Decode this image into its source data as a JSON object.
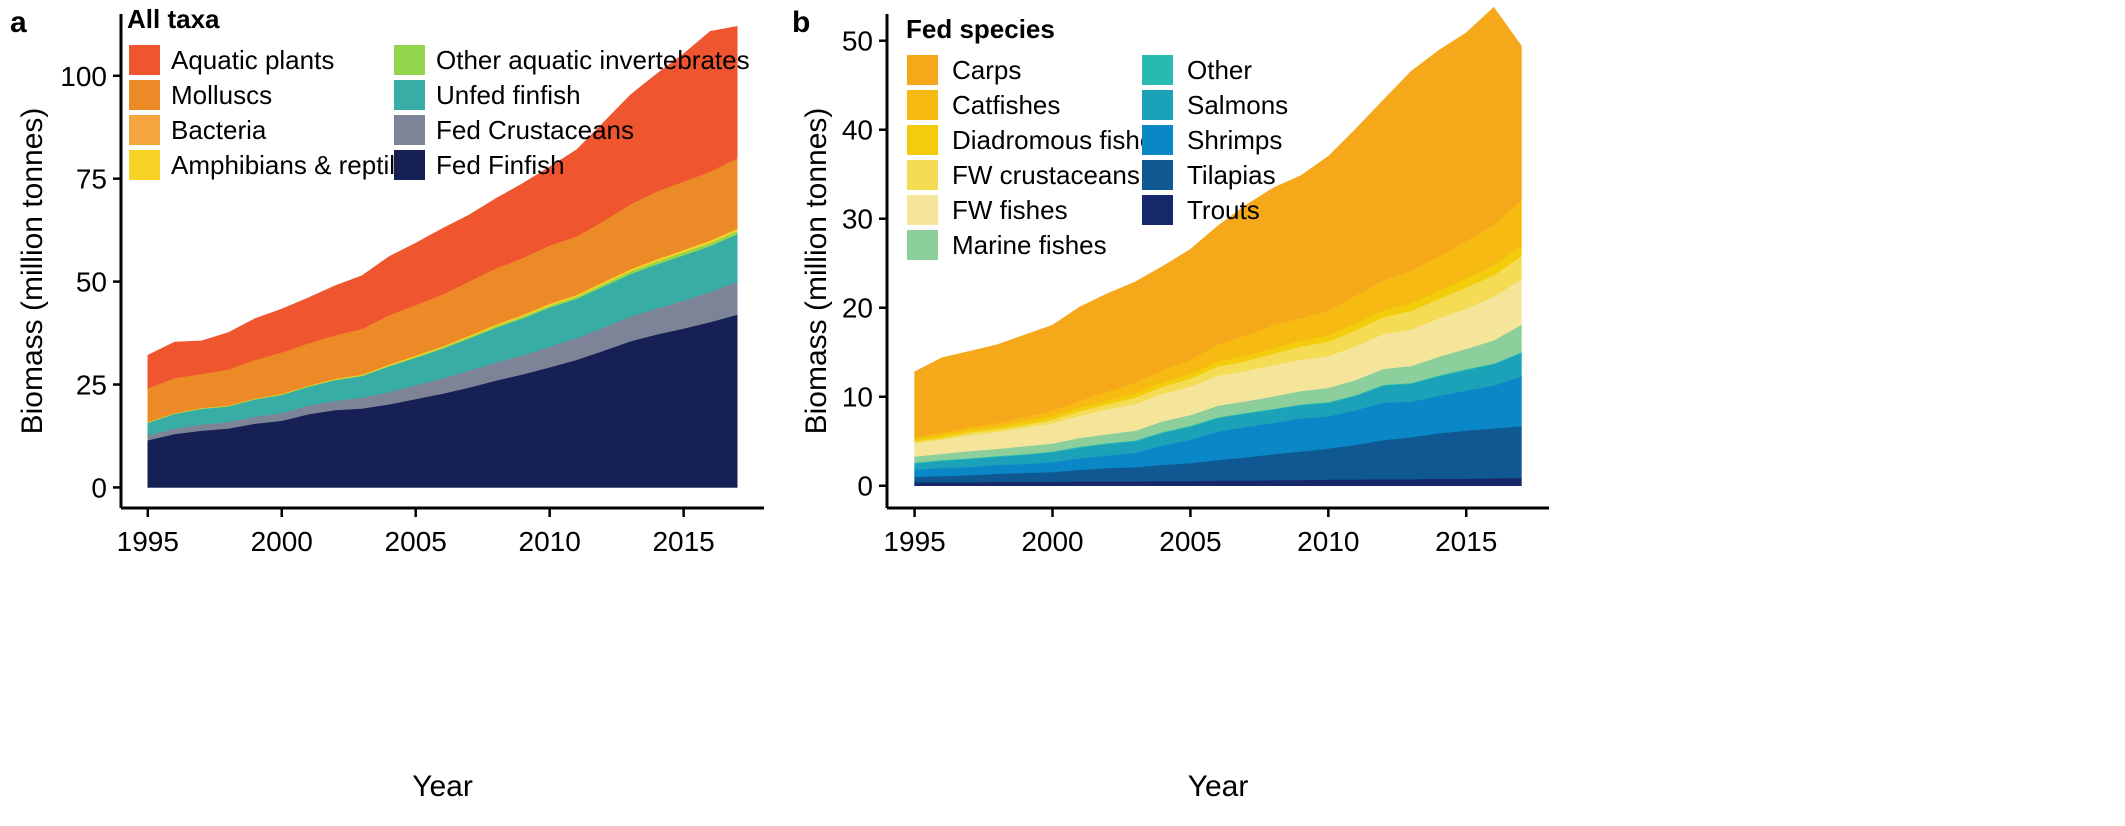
{
  "chart_data": [
    {
      "type": "area",
      "stacked": true,
      "panel_label": "a",
      "xlabel": "Year",
      "ylabel": "Biomass (million tonnes)",
      "xlim": [
        1994,
        2018
      ],
      "ylim": [
        -5,
        115
      ],
      "x_ticks": [
        1995,
        2000,
        2005,
        2010,
        2015
      ],
      "y_ticks": [
        0,
        25,
        50,
        75,
        100
      ],
      "grid": false,
      "legend_title": "All taxa",
      "legend_placement": "top-left",
      "legend_columns": [
        [
          "Aquatic plants",
          "Molluscs",
          "Bacteria",
          "Amphibians & reptiles"
        ],
        [
          "Other aquatic invertebrates",
          "Unfed finfish",
          "Fed Crustaceans",
          "Fed Finfish"
        ]
      ],
      "x": [
        1995,
        1996,
        1997,
        1998,
        1999,
        2000,
        2001,
        2002,
        2003,
        2004,
        2005,
        2006,
        2007,
        2008,
        2009,
        2010,
        2011,
        2012,
        2013,
        2014,
        2015,
        2016,
        2017
      ],
      "series": [
        {
          "name": "Fed Finfish",
          "color": "#162055",
          "values": [
            11.5,
            13.0,
            13.8,
            14.3,
            15.5,
            16.2,
            17.8,
            18.8,
            19.2,
            20.2,
            21.5,
            22.8,
            24.3,
            26.0,
            27.5,
            29.2,
            31.0,
            33.2,
            35.5,
            37.2,
            38.6,
            40.2,
            42.0
          ]
        },
        {
          "name": "Fed Crustaceans",
          "color": "#7e8498",
          "values": [
            1.2,
            1.3,
            1.5,
            1.6,
            1.7,
            1.9,
            2.1,
            2.3,
            2.6,
            3.0,
            3.4,
            3.7,
            4.1,
            4.4,
            4.6,
            5.0,
            5.3,
            5.6,
            6.0,
            6.3,
            6.8,
            7.3,
            8.0
          ]
        },
        {
          "name": "Unfed finfish",
          "color": "#38ada5",
          "values": [
            3.0,
            3.6,
            3.8,
            3.8,
            4.2,
            4.4,
            4.6,
            5.0,
            5.3,
            6.2,
            6.6,
            7.2,
            7.8,
            8.4,
            9.0,
            9.5,
            9.5,
            10.0,
            10.3,
            10.7,
            11.0,
            11.2,
            11.5
          ]
        },
        {
          "name": "Other aquatic invertebrates",
          "color": "#93d64e",
          "values": [
            0.1,
            0.1,
            0.1,
            0.1,
            0.1,
            0.1,
            0.1,
            0.1,
            0.15,
            0.2,
            0.25,
            0.3,
            0.35,
            0.4,
            0.45,
            0.5,
            0.55,
            0.6,
            0.65,
            0.7,
            0.75,
            0.75,
            0.8
          ]
        },
        {
          "name": "Amphibians & reptiles",
          "color": "#f8d326",
          "values": [
            0.1,
            0.1,
            0.1,
            0.1,
            0.1,
            0.15,
            0.15,
            0.2,
            0.2,
            0.25,
            0.3,
            0.3,
            0.35,
            0.4,
            0.4,
            0.45,
            0.45,
            0.5,
            0.5,
            0.55,
            0.55,
            0.55,
            0.6
          ]
        },
        {
          "name": "Bacteria",
          "color": "#f4a53e",
          "values": [
            0,
            0,
            0,
            0,
            0,
            0,
            0,
            0,
            0,
            0,
            0,
            0,
            0,
            0,
            0,
            0,
            0,
            0,
            0,
            0,
            0,
            0,
            0
          ]
        },
        {
          "name": "Molluscs",
          "color": "#eb8a26",
          "values": [
            8.2,
            8.5,
            8.3,
            8.8,
            9.4,
            10.1,
            10.3,
            10.6,
            11.1,
            12.0,
            12.3,
            12.6,
            13.2,
            13.7,
            13.8,
            14.2,
            14.2,
            14.8,
            15.8,
            16.5,
            16.6,
            16.8,
            17.1
          ]
        },
        {
          "name": "Aquatic plants",
          "color": "#ef552e",
          "values": [
            8.0,
            8.7,
            8.0,
            8.9,
            10.0,
            10.5,
            11.0,
            12.0,
            12.9,
            14.2,
            15.0,
            16.0,
            16.1,
            16.9,
            18.1,
            19.0,
            21.0,
            23.9,
            26.5,
            28.5,
            31.0,
            34.0,
            32.0
          ]
        }
      ]
    },
    {
      "type": "area",
      "stacked": true,
      "panel_label": "b",
      "xlabel": "Year",
      "ylabel": "Biomass (million tonnes)",
      "xlim": [
        1994,
        2018
      ],
      "ylim": [
        -2.5,
        53
      ],
      "x_ticks": [
        1995,
        2000,
        2005,
        2010,
        2015
      ],
      "y_ticks": [
        0,
        10,
        20,
        30,
        40,
        50
      ],
      "grid": false,
      "legend_title": "Fed species",
      "legend_placement": "top-left",
      "legend_columns": [
        [
          "Carps",
          "Catfishes",
          "Diadromous fishes",
          "FW crustaceans",
          "FW fishes",
          "Marine fishes"
        ],
        [
          "Other",
          "Salmons",
          "Shrimps",
          "Tilapias",
          "Trouts"
        ]
      ],
      "x": [
        1995,
        1996,
        1997,
        1998,
        1999,
        2000,
        2001,
        2002,
        2003,
        2004,
        2005,
        2006,
        2007,
        2008,
        2009,
        2010,
        2011,
        2012,
        2013,
        2014,
        2015,
        2016,
        2017
      ],
      "series": [
        {
          "name": "Trouts",
          "color": "#17286a",
          "values": [
            0.4,
            0.4,
            0.4,
            0.45,
            0.45,
            0.45,
            0.5,
            0.5,
            0.5,
            0.55,
            0.55,
            0.6,
            0.6,
            0.65,
            0.65,
            0.7,
            0.7,
            0.75,
            0.75,
            0.8,
            0.8,
            0.85,
            0.9
          ]
        },
        {
          "name": "Tilapias",
          "color": "#0f5891",
          "values": [
            0.6,
            0.7,
            0.8,
            0.9,
            1.0,
            1.1,
            1.3,
            1.5,
            1.6,
            1.8,
            2.0,
            2.3,
            2.6,
            2.9,
            3.2,
            3.5,
            3.9,
            4.4,
            4.7,
            5.1,
            5.4,
            5.6,
            5.8
          ]
        },
        {
          "name": "Shrimps",
          "color": "#0a87c6",
          "values": [
            0.8,
            0.9,
            0.9,
            1.0,
            1.0,
            1.1,
            1.3,
            1.4,
            1.6,
            2.2,
            2.6,
            3.2,
            3.4,
            3.5,
            3.7,
            3.6,
            3.9,
            4.2,
            4.0,
            4.2,
            4.5,
            4.8,
            5.6
          ]
        },
        {
          "name": "Salmons",
          "color": "#1ba1b8",
          "values": [
            0.7,
            0.8,
            0.9,
            0.9,
            1.0,
            1.1,
            1.2,
            1.3,
            1.3,
            1.4,
            1.5,
            1.5,
            1.5,
            1.5,
            1.5,
            1.5,
            1.6,
            1.9,
            2.0,
            2.2,
            2.3,
            2.4,
            2.6
          ]
        },
        {
          "name": "Other",
          "color": "#27bab0",
          "values": [
            0.1,
            0.1,
            0.1,
            0.1,
            0.1,
            0.1,
            0.1,
            0.1,
            0.1,
            0.1,
            0.1,
            0.1,
            0.1,
            0.1,
            0.1,
            0.1,
            0.1,
            0.1,
            0.1,
            0.1,
            0.1,
            0.1,
            0.1
          ]
        },
        {
          "name": "Marine fishes",
          "color": "#8ccf9c",
          "values": [
            0.7,
            0.7,
            0.8,
            0.8,
            0.9,
            0.9,
            1.0,
            1.0,
            1.1,
            1.2,
            1.2,
            1.3,
            1.3,
            1.4,
            1.5,
            1.6,
            1.7,
            1.8,
            1.9,
            2.1,
            2.3,
            2.6,
            3.1
          ]
        },
        {
          "name": "FW fishes",
          "color": "#f5e59a",
          "values": [
            1.5,
            1.6,
            1.8,
            1.9,
            2.1,
            2.3,
            2.5,
            2.8,
            3.0,
            3.1,
            3.2,
            3.4,
            3.4,
            3.5,
            3.5,
            3.6,
            3.8,
            3.9,
            4.1,
            4.3,
            4.5,
            4.9,
            5.1
          ]
        },
        {
          "name": "FW crustaceans",
          "color": "#f4dc55",
          "values": [
            0.2,
            0.2,
            0.3,
            0.3,
            0.3,
            0.4,
            0.5,
            0.6,
            0.7,
            0.8,
            0.9,
            1.0,
            1.1,
            1.3,
            1.5,
            1.6,
            1.8,
            1.9,
            2.1,
            2.2,
            2.4,
            2.4,
            2.6
          ]
        },
        {
          "name": "Diadromous fishes",
          "color": "#f3cd0c",
          "values": [
            0.3,
            0.3,
            0.3,
            0.3,
            0.4,
            0.4,
            0.4,
            0.4,
            0.5,
            0.5,
            0.5,
            0.6,
            0.6,
            0.6,
            0.7,
            0.7,
            0.8,
            0.8,
            0.9,
            0.9,
            1.0,
            1.1,
            1.2
          ]
        },
        {
          "name": "Catfishes",
          "color": "#f6ba12",
          "values": [
            0.2,
            0.3,
            0.3,
            0.4,
            0.5,
            0.6,
            0.8,
            1.0,
            1.2,
            1.4,
            1.6,
            1.9,
            2.3,
            2.6,
            2.5,
            2.8,
            3.1,
            3.4,
            3.6,
            3.9,
            4.2,
            4.6,
            5.1
          ]
        },
        {
          "name": "Carps",
          "color": "#f6a81b",
          "values": [
            7.3,
            8.4,
            8.5,
            8.8,
            9.2,
            9.6,
            10.5,
            11.0,
            11.3,
            11.6,
            12.4,
            13.3,
            14.6,
            15.4,
            16.0,
            17.3,
            18.7,
            20.2,
            22.4,
            23.1,
            23.4,
            24.4,
            17.3
          ]
        }
      ]
    }
  ]
}
